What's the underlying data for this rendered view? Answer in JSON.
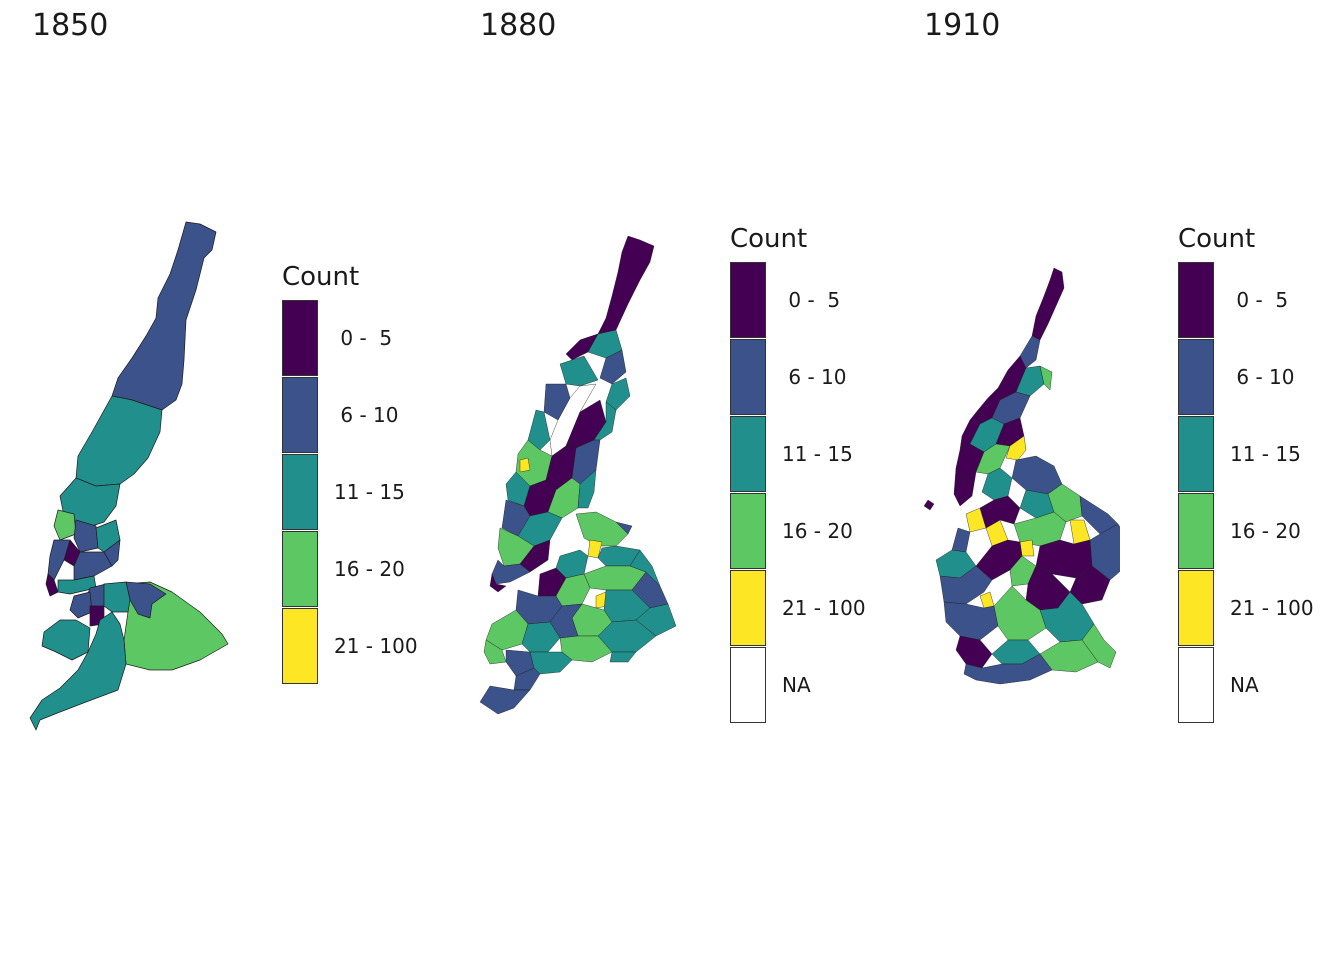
{
  "colors": {
    "c1": "#440154",
    "c2": "#3b528b",
    "c3": "#21908c",
    "c4": "#5dc863",
    "c5": "#fde725",
    "na": "#ffffff"
  },
  "panels": [
    {
      "title": "1850",
      "legend": {
        "title": "Count",
        "items": [
          {
            "label": " 0 -  5",
            "color": "#440154"
          },
          {
            "label": " 6 - 10",
            "color": "#3b528b"
          },
          {
            "label": "11 - 15",
            "color": "#21908c"
          },
          {
            "label": "16 - 20",
            "color": "#5dc863"
          },
          {
            "label": "21 - 100",
            "color": "#fde725"
          }
        ]
      }
    },
    {
      "title": "1880",
      "legend": {
        "title": "Count",
        "items": [
          {
            "label": " 0 -  5",
            "color": "#440154"
          },
          {
            "label": " 6 - 10",
            "color": "#3b528b"
          },
          {
            "label": "11 - 15",
            "color": "#21908c"
          },
          {
            "label": "16 - 20",
            "color": "#5dc863"
          },
          {
            "label": "21 - 100",
            "color": "#fde725"
          },
          {
            "label": "NA",
            "color": "#ffffff"
          }
        ]
      }
    },
    {
      "title": "1910",
      "legend": {
        "title": "Count",
        "items": [
          {
            "label": " 0 -  5",
            "color": "#440154"
          },
          {
            "label": " 6 - 10",
            "color": "#3b528b"
          },
          {
            "label": "11 - 15",
            "color": "#21908c"
          },
          {
            "label": "16 - 20",
            "color": "#5dc863"
          },
          {
            "label": "21 - 100",
            "color": "#fde725"
          },
          {
            "label": "NA",
            "color": "#ffffff"
          }
        ]
      }
    }
  ]
}
